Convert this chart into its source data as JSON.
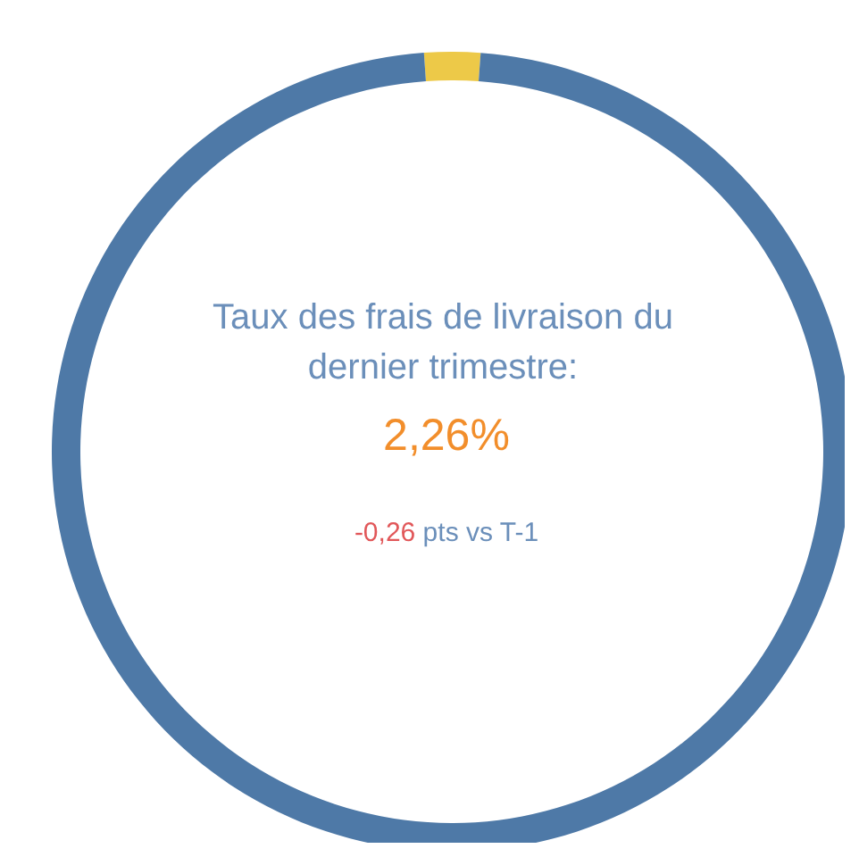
{
  "chart_data": {
    "type": "donut",
    "title": "Taux des frais de livraison du dernier trimestre:",
    "categories": [
      null,
      null
    ],
    "values": [
      2.26,
      97.74
    ],
    "colors": [
      "#edc948",
      "#4e79a7"
    ],
    "annotations": [
      "2,26%",
      "-0,26 pts vs T-1"
    ]
  }
}
